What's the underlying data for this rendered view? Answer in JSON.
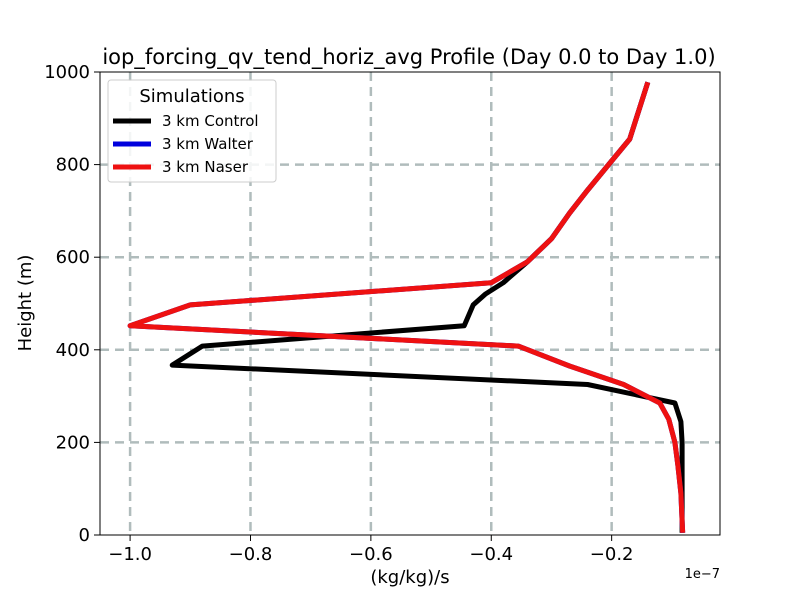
{
  "chart_data": {
    "type": "line",
    "title": "iop_forcing_qv_tend_horiz_avg Profile (Day 0.0 to Day 1.0)",
    "xlabel": "(kg/kg)/s",
    "ylabel": "Height (m)",
    "x_offset_label": "1e−7",
    "xlim": [
      -1.05,
      -0.02
    ],
    "ylim": [
      0,
      1000
    ],
    "xticks": [
      -1.0,
      -0.8,
      -0.6,
      -0.4,
      -0.2
    ],
    "xtick_labels": [
      "−1.0",
      "−0.8",
      "−0.6",
      "−0.4",
      "−0.2"
    ],
    "yticks": [
      0,
      200,
      400,
      600,
      800,
      1000
    ],
    "ytick_labels": [
      "0",
      "200",
      "400",
      "600",
      "800",
      "1000"
    ],
    "grid": true,
    "legend": {
      "title": "Simulations",
      "position": "upper-left"
    },
    "series": [
      {
        "name": "3 km Control",
        "color": "#000000",
        "points": [
          [
            -0.083,
            5
          ],
          [
            -0.083,
            30
          ],
          [
            -0.083,
            90
          ],
          [
            -0.083,
            150
          ],
          [
            -0.083,
            200
          ],
          [
            -0.085,
            245
          ],
          [
            -0.095,
            285
          ],
          [
            -0.24,
            325
          ],
          [
            -0.93,
            367
          ],
          [
            -0.88,
            408
          ],
          [
            -0.445,
            452
          ],
          [
            -0.43,
            497
          ],
          [
            -0.41,
            520
          ],
          [
            -0.38,
            545
          ],
          [
            -0.34,
            590
          ],
          [
            -0.3,
            640
          ],
          [
            -0.27,
            695
          ],
          [
            -0.24,
            745
          ],
          [
            -0.205,
            800
          ],
          [
            -0.17,
            855
          ],
          [
            -0.14,
            978
          ]
        ]
      },
      {
        "name": "3 km Walter",
        "color": "#0000dd",
        "points": [
          [
            -0.082,
            5
          ],
          [
            -0.083,
            30
          ],
          [
            -0.085,
            90
          ],
          [
            -0.09,
            150
          ],
          [
            -0.095,
            200
          ],
          [
            -0.105,
            250
          ],
          [
            -0.12,
            285
          ],
          [
            -0.18,
            325
          ],
          [
            -0.27,
            365
          ],
          [
            -0.355,
            408
          ],
          [
            -1.0,
            452
          ],
          [
            -0.9,
            497
          ],
          [
            -0.4,
            545
          ],
          [
            -0.34,
            590
          ],
          [
            -0.3,
            640
          ],
          [
            -0.27,
            695
          ],
          [
            -0.24,
            745
          ],
          [
            -0.205,
            800
          ],
          [
            -0.17,
            855
          ],
          [
            -0.14,
            978
          ]
        ]
      },
      {
        "name": "3 km Naser",
        "color": "#ee1111",
        "points": [
          [
            -0.082,
            5
          ],
          [
            -0.083,
            30
          ],
          [
            -0.085,
            90
          ],
          [
            -0.09,
            150
          ],
          [
            -0.095,
            200
          ],
          [
            -0.105,
            250
          ],
          [
            -0.12,
            285
          ],
          [
            -0.18,
            325
          ],
          [
            -0.27,
            365
          ],
          [
            -0.355,
            408
          ],
          [
            -1.0,
            452
          ],
          [
            -0.9,
            497
          ],
          [
            -0.4,
            545
          ],
          [
            -0.34,
            590
          ],
          [
            -0.3,
            640
          ],
          [
            -0.27,
            695
          ],
          [
            -0.24,
            745
          ],
          [
            -0.205,
            800
          ],
          [
            -0.17,
            855
          ],
          [
            -0.14,
            978
          ]
        ]
      }
    ]
  }
}
